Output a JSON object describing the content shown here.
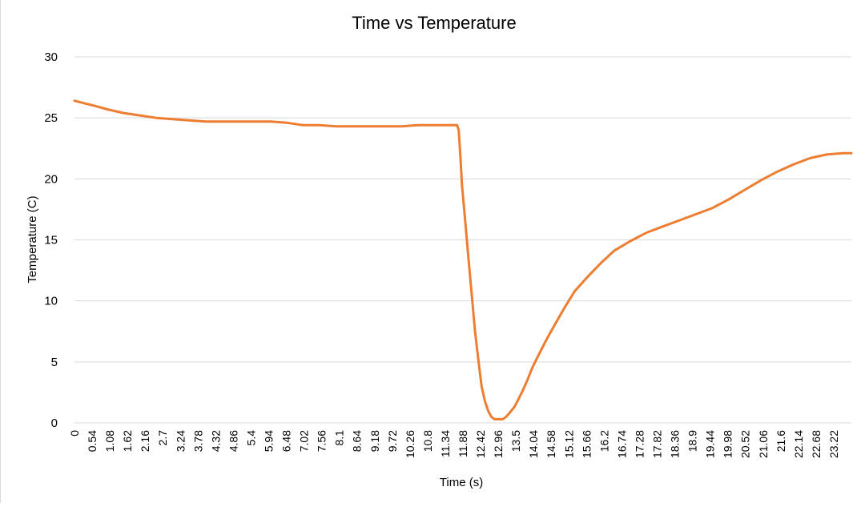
{
  "chart_data": {
    "type": "line",
    "title": "Time vs Temperature",
    "xlabel": "Time (s)",
    "ylabel": "Temperature (C)",
    "ylim": [
      0,
      30
    ],
    "y_ticks": [
      "0",
      "5",
      "10",
      "15",
      "20",
      "25",
      "30"
    ],
    "x_ticks": [
      "0",
      "0.54",
      "1.08",
      "1.62",
      "2.16",
      "2.7",
      "3.24",
      "3.78",
      "4.32",
      "4.86",
      "5.4",
      "5.94",
      "6.48",
      "7.02",
      "7.56",
      "8.1",
      "8.64",
      "9.18",
      "9.72",
      "10.26",
      "10.8",
      "11.34",
      "11.88",
      "12.42",
      "12.96",
      "13.5",
      "14.04",
      "14.58",
      "15.12",
      "15.66",
      "16.2",
      "16.74",
      "17.28",
      "17.82",
      "18.36",
      "18.9",
      "19.44",
      "19.98",
      "20.52",
      "21.06",
      "21.6",
      "22.14",
      "22.68",
      "23.22"
    ],
    "xlim": [
      0,
      23.76
    ],
    "grid": true,
    "line_color": "#ED7D31",
    "series": [
      {
        "x": [
          0,
          0.3,
          0.6,
          1.0,
          1.5,
          2.0,
          2.5,
          3.0,
          3.5,
          4.0,
          4.5,
          5.0,
          5.5,
          6.0,
          6.5,
          7.0,
          7.5,
          8.0,
          8.5,
          9.0,
          9.5,
          10.0,
          10.5,
          10.8,
          11.3,
          11.7,
          11.75,
          11.8,
          11.85,
          11.95,
          12.05,
          12.15,
          12.25,
          12.35,
          12.45,
          12.55,
          12.65,
          12.75,
          12.85,
          13.0,
          13.1,
          13.2,
          13.3,
          13.45,
          13.55,
          13.7,
          13.85,
          14.0,
          14.2,
          14.45,
          14.7,
          15.0,
          15.3,
          15.7,
          16.1,
          16.5,
          17.0,
          17.5,
          18.0,
          18.5,
          19.0,
          19.5,
          20.0,
          20.5,
          21.0,
          21.5,
          22.0,
          22.5,
          23.0,
          23.5,
          23.76
        ],
        "y": [
          26.4,
          26.2,
          26.0,
          25.7,
          25.4,
          25.2,
          25.0,
          24.9,
          24.8,
          24.7,
          24.7,
          24.7,
          24.7,
          24.7,
          24.6,
          24.4,
          24.4,
          24.3,
          24.3,
          24.3,
          24.3,
          24.3,
          24.4,
          24.4,
          24.4,
          24.4,
          24.0,
          22.0,
          19.5,
          16.5,
          13.5,
          10.5,
          7.5,
          5.2,
          3.0,
          1.8,
          1.0,
          0.5,
          0.3,
          0.3,
          0.3,
          0.5,
          0.8,
          1.3,
          1.8,
          2.6,
          3.5,
          4.5,
          5.6,
          6.9,
          8.1,
          9.5,
          10.8,
          12.0,
          13.1,
          14.1,
          14.9,
          15.6,
          16.1,
          16.6,
          17.1,
          17.6,
          18.3,
          19.1,
          19.9,
          20.6,
          21.2,
          21.7,
          22.0,
          22.1,
          22.1
        ]
      }
    ]
  }
}
